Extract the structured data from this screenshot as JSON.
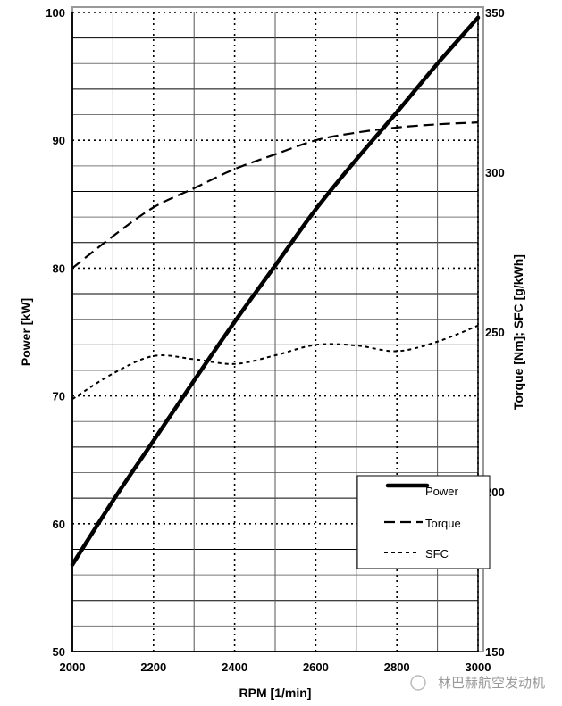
{
  "chart_data": {
    "type": "line",
    "title": "",
    "xlabel": "RPM [1/min]",
    "ylabel": "Power [kW]",
    "y2label": "Torque [Nm]; SFC [g/kWh]",
    "xlim": [
      2000,
      3000
    ],
    "ylim": [
      50,
      100
    ],
    "y2lim": [
      150,
      350
    ],
    "xticks": [
      2000,
      2200,
      2400,
      2600,
      2800,
      3000
    ],
    "yticks": [
      50,
      60,
      70,
      80,
      90,
      100
    ],
    "y2ticks": [
      150,
      200,
      250,
      300,
      350
    ],
    "grid": true,
    "legend_position": "bottom-right",
    "x": [
      2000,
      2100,
      2200,
      2300,
      2400,
      2500,
      2600,
      2700,
      2800,
      2900,
      3000
    ],
    "series": [
      {
        "name": "Power",
        "axis": "left",
        "style": "solid",
        "values": [
          56.8,
          61.8,
          66.5,
          71.2,
          75.8,
          80.2,
          84.6,
          88.5,
          92.2,
          96.0,
          99.6
        ]
      },
      {
        "name": "Torque",
        "axis": "right",
        "style": "dashed",
        "values": [
          270,
          280,
          289,
          295,
          301,
          305.6,
          310,
          312.4,
          314,
          315,
          315.6
        ]
      },
      {
        "name": "SFC",
        "axis": "right",
        "style": "dotted",
        "values": [
          229,
          237,
          242.5,
          241.5,
          240,
          242.7,
          246,
          245.8,
          244,
          247,
          252
        ]
      }
    ]
  },
  "watermark": "林巴赫航空发动机"
}
